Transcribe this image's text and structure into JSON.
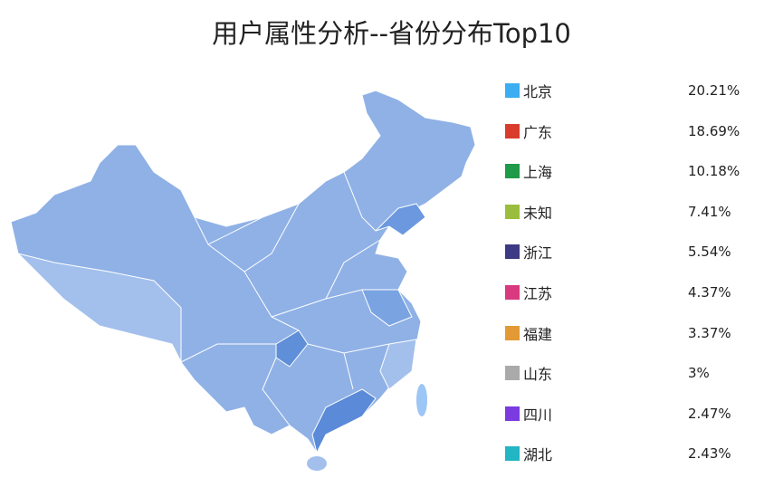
{
  "chart_data": {
    "type": "map",
    "title": "用户属性分析--省份分布Top10",
    "legend_placement": "right",
    "map_fill_color": "#8fb1e6",
    "highlight_fill_color": "#6b98de",
    "categories": [
      "北京",
      "广东",
      "上海",
      "未知",
      "浙江",
      "江苏",
      "福建",
      "山东",
      "四川",
      "湖北"
    ],
    "values": [
      "20.21%",
      "18.69%",
      "10.18%",
      "7.41%",
      "5.54%",
      "4.37%",
      "3.37%",
      "3%",
      "2.47%",
      "2.43%"
    ],
    "colors": [
      "#3aaef0",
      "#d93c2c",
      "#1e9a4a",
      "#9bbd3e",
      "#3d3a85",
      "#d8397f",
      "#e39a34",
      "#aaaaaa",
      "#7b3be0",
      "#22b5c3"
    ]
  }
}
